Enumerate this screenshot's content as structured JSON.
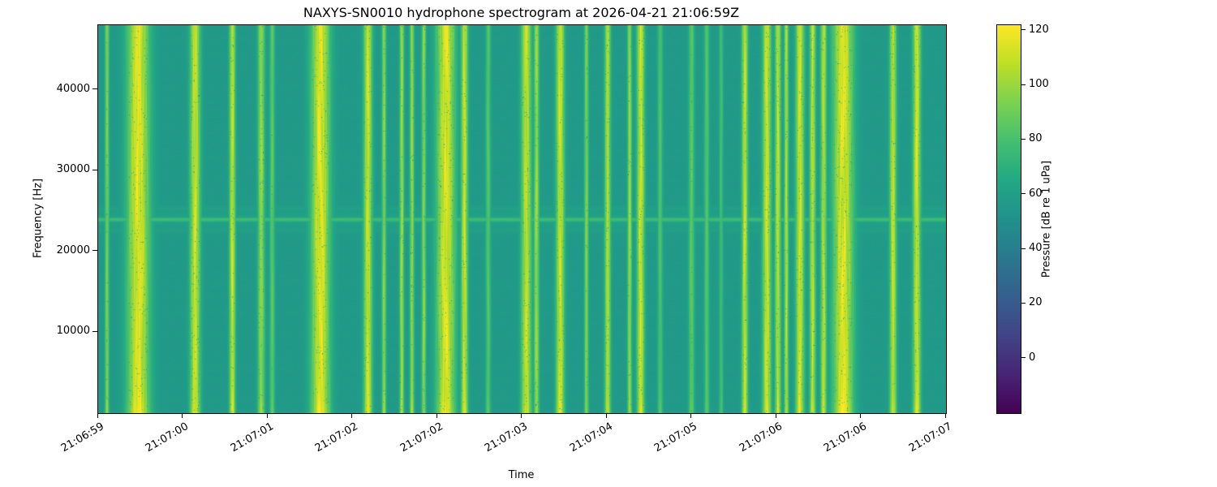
{
  "chart_data": {
    "type": "heatmap",
    "title": "NAXYS-SN0010 hydrophone spectrogram at 2026-04-21 21:06:59Z",
    "xlabel": "Time",
    "ylabel": "Frequency [Hz]",
    "x_ticks": [
      "21:06:59",
      "21:07:00",
      "21:07:01",
      "21:07:02",
      "21:07:02",
      "21:07:03",
      "21:07:04",
      "21:07:05",
      "21:07:06",
      "21:07:06",
      "21:07:07"
    ],
    "y_ticks": [
      10000,
      20000,
      30000,
      40000
    ],
    "freq_range_hz": [
      0,
      48000
    ],
    "grid": false,
    "legend": false,
    "colormap": "viridis",
    "colormap_stops": [
      "#440154",
      "#482475",
      "#414487",
      "#355f8d",
      "#2a788e",
      "#21918c",
      "#22a884",
      "#44bf70",
      "#7ad151",
      "#bddf26",
      "#fde725"
    ],
    "colorbar": {
      "label": "Pressure [dB re 1 uPa]",
      "ticks": [
        0,
        20,
        40,
        60,
        80,
        100,
        120
      ],
      "vmin": -20,
      "vmax": 122
    },
    "background_db": 56,
    "noise_db": 1.8,
    "tone": {
      "freq_hz": 24000,
      "level_db": 74,
      "sideband_offset_hz": 1400,
      "sideband_level_db": 62
    },
    "transients": [
      {
        "t": 0.01,
        "w": 0.0025,
        "db": 96
      },
      {
        "t": 0.047,
        "w": 0.013,
        "db": 119
      },
      {
        "t": 0.114,
        "w": 0.006,
        "db": 114
      },
      {
        "t": 0.158,
        "w": 0.0035,
        "db": 113
      },
      {
        "t": 0.192,
        "w": 0.004,
        "db": 102
      },
      {
        "t": 0.205,
        "w": 0.003,
        "db": 88
      },
      {
        "t": 0.262,
        "w": 0.011,
        "db": 119
      },
      {
        "t": 0.318,
        "w": 0.005,
        "db": 114
      },
      {
        "t": 0.337,
        "w": 0.0025,
        "db": 100
      },
      {
        "t": 0.358,
        "w": 0.0025,
        "db": 106
      },
      {
        "t": 0.37,
        "w": 0.0025,
        "db": 103
      },
      {
        "t": 0.384,
        "w": 0.0025,
        "db": 100
      },
      {
        "t": 0.41,
        "w": 0.011,
        "db": 118
      },
      {
        "t": 0.432,
        "w": 0.004,
        "db": 114
      },
      {
        "t": 0.46,
        "w": 0.003,
        "db": 86
      },
      {
        "t": 0.505,
        "w": 0.006,
        "db": 112
      },
      {
        "t": 0.517,
        "w": 0.003,
        "db": 104
      },
      {
        "t": 0.545,
        "w": 0.005,
        "db": 114
      },
      {
        "t": 0.576,
        "w": 0.0025,
        "db": 97
      },
      {
        "t": 0.601,
        "w": 0.0035,
        "db": 109
      },
      {
        "t": 0.627,
        "w": 0.0025,
        "db": 104
      },
      {
        "t": 0.64,
        "w": 0.0045,
        "db": 115
      },
      {
        "t": 0.663,
        "w": 0.003,
        "db": 84
      },
      {
        "t": 0.7,
        "w": 0.0035,
        "db": 88
      },
      {
        "t": 0.718,
        "w": 0.003,
        "db": 86
      },
      {
        "t": 0.735,
        "w": 0.0025,
        "db": 80
      },
      {
        "t": 0.763,
        "w": 0.0035,
        "db": 113
      },
      {
        "t": 0.789,
        "w": 0.005,
        "db": 115
      },
      {
        "t": 0.802,
        "w": 0.0035,
        "db": 111
      },
      {
        "t": 0.812,
        "w": 0.0025,
        "db": 109
      },
      {
        "t": 0.828,
        "w": 0.005,
        "db": 115
      },
      {
        "t": 0.843,
        "w": 0.0035,
        "db": 111
      },
      {
        "t": 0.856,
        "w": 0.0035,
        "db": 109
      },
      {
        "t": 0.879,
        "w": 0.012,
        "db": 119
      },
      {
        "t": 0.938,
        "w": 0.004,
        "db": 112
      },
      {
        "t": 0.966,
        "w": 0.0045,
        "db": 115
      }
    ]
  }
}
